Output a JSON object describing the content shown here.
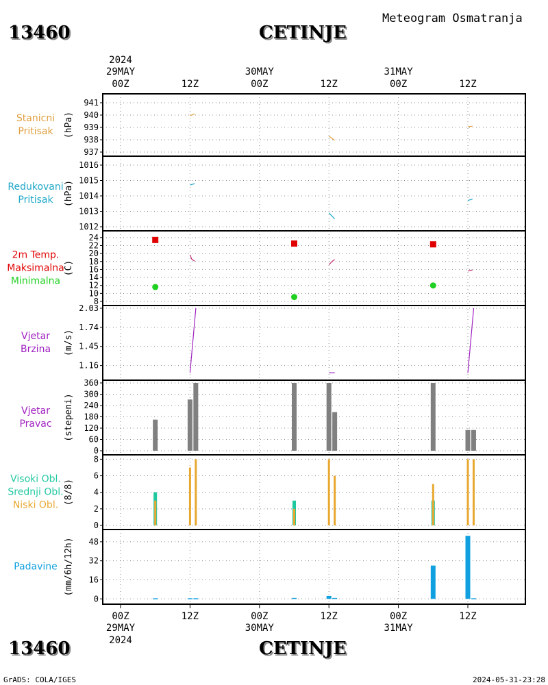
{
  "header": {
    "station_id": "13460",
    "station_name": "CETINJE",
    "product_title": "Meteogram Osmatranja"
  },
  "footer": {
    "station_id": "13460",
    "station_name": "CETINJE",
    "credit": "GrADS: COLA/IGES",
    "timestamp": "2024-05-31-23:28"
  },
  "time_axis": {
    "year": "2024",
    "ticks": [
      {
        "hour": 0,
        "hour_label": "00Z",
        "date_label": "29MAY"
      },
      {
        "hour": 12,
        "hour_label": "12Z",
        "date_label": ""
      },
      {
        "hour": 24,
        "hour_label": "00Z",
        "date_label": "30MAY"
      },
      {
        "hour": 36,
        "hour_label": "12Z",
        "date_label": ""
      },
      {
        "hour": 48,
        "hour_label": "00Z",
        "date_label": "31MAY"
      },
      {
        "hour": 60,
        "hour_label": "12Z",
        "date_label": ""
      }
    ]
  },
  "colors": {
    "station_pressure": "#e0a040",
    "reduced_pressure": "#20a8c8",
    "tmax": "#e00000",
    "tmin": "#20d020",
    "temp_line": "#c03070",
    "wind": "#a020c0",
    "wind_dir_bar": "#808080",
    "cloud_high": "#20c8a0",
    "cloud_mid": "#40b8e0",
    "cloud_low": "#e8a830",
    "precip": "#10a0e0",
    "grid": "#888888"
  },
  "chart_data": [
    {
      "type": "line",
      "id": "station_pressure",
      "labels": [
        "Stanicni",
        "Pritisak"
      ],
      "unit": "(hPa)",
      "ylim": [
        937,
        941.5
      ],
      "yticks": [
        937,
        938,
        939,
        940,
        941
      ],
      "series": [
        {
          "segments": [
            [
              [
                12.0,
                939.95
              ],
              [
                12.8,
                940.1
              ]
            ],
            [
              [
                36.0,
                938.3
              ],
              [
                37.0,
                937.95
              ]
            ],
            [
              [
                60.0,
                939.05
              ],
              [
                60.8,
                939.1
              ]
            ]
          ]
        }
      ]
    },
    {
      "type": "line",
      "id": "reduced_pressure",
      "labels": [
        "Redukovani",
        "Pritisak"
      ],
      "unit": "(hPa)",
      "ylim": [
        1012,
        1016.4
      ],
      "yticks": [
        1012,
        1013,
        1014,
        1015,
        1016
      ],
      "series": [
        {
          "segments": [
            [
              [
                12.0,
                1014.7
              ],
              [
                12.8,
                1014.8
              ]
            ],
            [
              [
                36.0,
                1012.9
              ],
              [
                37.0,
                1012.5
              ]
            ],
            [
              [
                60.0,
                1013.7
              ],
              [
                60.8,
                1013.8
              ]
            ]
          ]
        }
      ]
    },
    {
      "type": "line",
      "id": "temperature",
      "labels": [
        "2m Temp.",
        "Maksimalna",
        "Minimalna"
      ],
      "unit": "(C)",
      "ylim": [
        8,
        25
      ],
      "yticks": [
        8,
        10,
        12,
        14,
        16,
        18,
        20,
        22,
        24
      ],
      "series": [
        {
          "segments": [
            [
              [
                12.0,
                19.7
              ],
              [
                12.3,
                18.6
              ],
              [
                12.8,
                18.1
              ]
            ],
            [
              [
                36.0,
                17.2
              ],
              [
                36.6,
                18.1
              ],
              [
                37.0,
                18.5
              ]
            ],
            [
              [
                60.0,
                15.6
              ],
              [
                60.8,
                15.9
              ]
            ]
          ]
        }
      ],
      "tmax": [
        [
          6,
          23.4
        ],
        [
          30,
          22.5
        ],
        [
          54,
          22.3
        ]
      ],
      "tmin": [
        [
          6,
          11.6
        ],
        [
          30,
          9.1
        ],
        [
          54,
          12.0
        ]
      ]
    },
    {
      "type": "line",
      "id": "wind_speed",
      "labels": [
        "Vjetar",
        "Brzina"
      ],
      "unit": "(m/s)",
      "ylim": [
        1.0,
        2.03
      ],
      "yticks": [
        1.16,
        1.45,
        1.74,
        2.03
      ],
      "series": [
        {
          "segments": [
            [
              [
                12.0,
                1.05
              ],
              [
                13.0,
                2.03
              ]
            ],
            [
              [
                36.0,
                1.05
              ],
              [
                37.0,
                1.05
              ]
            ],
            [
              [
                60.0,
                1.05
              ],
              [
                61.0,
                2.03
              ]
            ]
          ]
        }
      ]
    },
    {
      "type": "bar",
      "id": "wind_direction",
      "labels": [
        "Vjetar",
        "Pravac"
      ],
      "unit": "(stepeni)",
      "ylim": [
        0,
        360
      ],
      "yticks": [
        0,
        60,
        120,
        180,
        240,
        300,
        360
      ],
      "bars": [
        [
          6,
          165
        ],
        [
          12,
          272
        ],
        [
          13,
          360
        ],
        [
          30,
          360
        ],
        [
          36,
          360
        ],
        [
          37,
          205
        ],
        [
          54,
          360
        ],
        [
          60,
          110
        ],
        [
          61,
          110
        ]
      ]
    },
    {
      "type": "bar",
      "id": "clouds",
      "labels": [
        "Visoki Obl.",
        "Srednji Obl.",
        "Niski Obl."
      ],
      "unit": "(8/8)",
      "ylim": [
        0,
        8.2
      ],
      "yticks": [
        0,
        2,
        4,
        6,
        8
      ],
      "series": [
        {
          "name": "Visoki Obl.",
          "bars": [
            [
              6,
              4
            ],
            [
              30,
              3
            ],
            [
              54,
              3
            ]
          ]
        },
        {
          "name": "Srednji Obl.",
          "bars": [
            [
              6,
              3
            ],
            [
              30,
              2
            ],
            [
              54,
              2
            ]
          ]
        },
        {
          "name": "Niski Obl.",
          "bars": [
            [
              6,
              3
            ],
            [
              12,
              7
            ],
            [
              13,
              8
            ],
            [
              30,
              2
            ],
            [
              36,
              8
            ],
            [
              37,
              6
            ],
            [
              54,
              5
            ],
            [
              60,
              8
            ],
            [
              61,
              8
            ]
          ]
        }
      ]
    },
    {
      "type": "bar",
      "id": "precipitation",
      "labels": [
        "Padavine"
      ],
      "unit": "(mm/6h/12h)",
      "ylim": [
        -1,
        56
      ],
      "yticks": [
        0,
        16,
        32,
        48
      ],
      "bars": [
        [
          6,
          0.5
        ],
        [
          12,
          0.5
        ],
        [
          13,
          0.5
        ],
        [
          30,
          0.8
        ],
        [
          36,
          2.5
        ],
        [
          37,
          0.8
        ],
        [
          54,
          28
        ],
        [
          60,
          53
        ],
        [
          61,
          0.5
        ]
      ]
    }
  ]
}
